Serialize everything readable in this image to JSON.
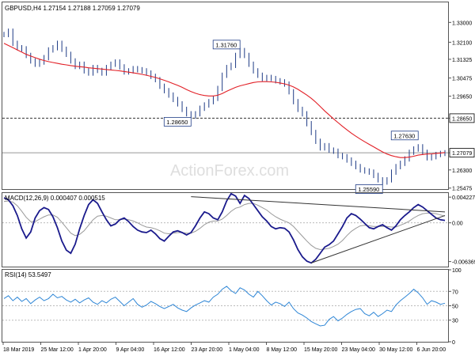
{
  "chart_data": [
    {
      "type": "line",
      "panel": "price",
      "title": "GBPUSD,H4  1.27154 1.27188 1.27059 1.27079",
      "watermark": "ActionForex.com",
      "ylim": [
        1.2543,
        1.3391
      ],
      "yticks": [
        "1.33000",
        "1.32100",
        "1.31325",
        "1.30475",
        "1.29650",
        "1.28650",
        "1.27079",
        "1.26300",
        "1.25475"
      ],
      "current_price": 1.27079,
      "current_price_label": "1.27079",
      "xticks": [
        "18 Mar 2019",
        "25 Mar 12:00",
        "1 Apr 20:00",
        "9 Apr 04:00",
        "16 Apr 12:00",
        "23 Apr 20:00",
        "1 May 04:00",
        "8 May 12:00",
        "15 May 20:00",
        "23 May 04:00",
        "30 May 12:00",
        "6 Jun 20:00"
      ],
      "series": [
        {
          "values": [
            1.3245,
            1.326,
            1.3205,
            1.3185,
            1.318,
            1.315,
            1.3125,
            1.311,
            1.312,
            1.314,
            1.3175,
            1.3185,
            1.3205,
            1.3178,
            1.3155,
            1.3125,
            1.31,
            1.311,
            1.308,
            1.307,
            1.3095,
            1.3082,
            1.307,
            1.3095,
            1.311,
            1.312,
            1.3098,
            1.3075,
            1.308,
            1.309,
            1.3085,
            1.308,
            1.307,
            1.3055,
            1.304,
            1.301,
            1.299,
            1.297,
            1.295,
            1.293,
            1.2905,
            1.2885,
            1.2875,
            1.2885,
            1.291,
            1.2925,
            1.294,
            1.2955,
            1.3,
            1.306,
            1.3095,
            1.3105,
            1.315,
            1.3172,
            1.315,
            1.311,
            1.308,
            1.306,
            1.3045,
            1.305,
            1.3045,
            1.3035,
            1.303,
            1.302,
            1.2985,
            1.294,
            1.2905,
            1.2885,
            1.284,
            1.28,
            1.276,
            1.273,
            1.274,
            1.272,
            1.2715,
            1.2695,
            1.269,
            1.2675,
            1.266,
            1.2645,
            1.263,
            1.2625,
            1.262,
            1.2605,
            1.2585,
            1.2575,
            1.2585,
            1.262,
            1.2645,
            1.266,
            1.268,
            1.271,
            1.2725,
            1.2735,
            1.271,
            1.2685,
            1.269,
            1.27,
            1.2705,
            1.2708
          ]
        },
        {
          "values": [
            1.3205,
            1.3195,
            1.3185,
            1.3175,
            1.3165,
            1.3155,
            1.3147,
            1.314,
            1.3133,
            1.3127,
            1.3122,
            1.3118,
            1.3114,
            1.311,
            1.3107,
            1.3104,
            1.3101,
            1.3099,
            1.3097,
            1.3094,
            1.3092,
            1.309,
            1.3088,
            1.3086,
            1.3084,
            1.3082,
            1.308,
            1.3077,
            1.3074,
            1.3071,
            1.3068,
            1.3064,
            1.306,
            1.3055,
            1.305,
            1.3044,
            1.3037,
            1.303,
            1.3022,
            1.3014,
            1.3005,
            1.2995,
            1.2986,
            1.2978,
            1.2972,
            1.2968,
            1.2966,
            1.2966,
            1.2969,
            1.2977,
            1.2987,
            1.2996,
            1.3005,
            1.3012,
            1.3017,
            1.3022,
            1.3027,
            1.303,
            1.3031,
            1.3031,
            1.303,
            1.3028,
            1.3025,
            1.3021,
            1.3015,
            1.3007,
            1.2996,
            1.2983,
            1.297,
            1.2955,
            1.2938,
            1.2918,
            1.2898,
            1.288,
            1.2862,
            1.2845,
            1.2828,
            1.2812,
            1.2797,
            1.2783,
            1.277,
            1.2758,
            1.2746,
            1.2735,
            1.2723,
            1.2712,
            1.2702,
            1.2695,
            1.269,
            1.2686,
            1.2686,
            1.2688,
            1.2692,
            1.2697,
            1.27,
            1.2702,
            1.2703,
            1.2705,
            1.2707,
            1.2709
          ]
        }
      ],
      "annotations": [
        {
          "label": "1.31760",
          "index": 53,
          "value": 1.3176,
          "kind": "high"
        },
        {
          "label": "1.28650",
          "index": 42,
          "value": 1.2865,
          "kind": "low"
        },
        {
          "label": "1.27630",
          "index": 93,
          "value": 1.2763,
          "kind": "high"
        },
        {
          "label": "1.25590",
          "index": 85,
          "value": 1.2559,
          "kind": "low"
        }
      ],
      "support_level": {
        "value": 1.2865,
        "label": "1.28650"
      }
    },
    {
      "type": "line",
      "panel": "macd",
      "title": "MACD(12,26,9) 0.000407 0.000515",
      "ylim": [
        -0.0072,
        0.0049
      ],
      "yticks": [
        "0.004227",
        "0.00",
        "-0.006369"
      ],
      "series": [
        {
          "values": [
            0.0041,
            0.0038,
            0.0028,
            0.0012,
            -0.001,
            -0.0025,
            -0.0015,
            0.0008,
            0.002,
            0.0025,
            0.0022,
            0.001,
            -0.0008,
            -0.003,
            -0.0045,
            -0.005,
            -0.0035,
            -0.001,
            0.0012,
            0.003,
            0.0038,
            0.0032,
            0.0018,
            0.0005,
            -0.0005,
            -0.0002,
            0.0005,
            0.0008,
            0.0002,
            -0.0006,
            -0.0012,
            -0.0015,
            -0.0016,
            -0.0012,
            -0.0018,
            -0.0026,
            -0.003,
            -0.0022,
            -0.0015,
            -0.0013,
            -0.0016,
            -0.002,
            -0.0016,
            -0.0005,
            0.0008,
            0.0018,
            0.0015,
            0.0008,
            0.0005,
            0.0018,
            0.0036,
            0.0048,
            0.0044,
            0.0032,
            0.0045,
            0.004,
            0.003,
            0.002,
            0.001,
            0.0003,
            -0.0006,
            -0.001,
            -0.0008,
            -0.0009,
            -0.0015,
            -0.0028,
            -0.0044,
            -0.0056,
            -0.0063,
            -0.0066,
            -0.006,
            -0.005,
            -0.004,
            -0.0036,
            -0.003,
            -0.0018,
            -0.0006,
            0.0008,
            0.0015,
            0.0012,
            0.0006,
            -0.0001,
            -0.0008,
            -0.001,
            -0.0006,
            -0.0003,
            -0.0008,
            -0.0012,
            -0.0005,
            0.0005,
            0.0012,
            0.0018,
            0.0025,
            0.003,
            0.0026,
            0.002,
            0.0014,
            0.0008,
            0.0005,
            0.0004
          ]
        },
        {
          "values": [
            0.0035,
            0.0036,
            0.0034,
            0.0028,
            0.0019,
            0.0009,
            0.0002,
            0.0002,
            0.0006,
            0.001,
            0.0013,
            0.0013,
            0.0009,
            0.0001,
            -0.0008,
            -0.0017,
            -0.0021,
            -0.0019,
            -0.0013,
            -0.0004,
            0.0005,
            0.0011,
            0.0012,
            0.0011,
            0.0008,
            0.0005,
            0.0005,
            0.0006,
            0.0005,
            0.0003,
            0.0,
            -0.0004,
            -0.0007,
            -0.0008,
            -0.001,
            -0.0013,
            -0.0017,
            -0.0018,
            -0.0017,
            -0.0016,
            -0.0016,
            -0.0017,
            -0.0017,
            -0.0014,
            -0.0009,
            -0.0003,
            0.0001,
            0.0003,
            0.0003,
            0.0006,
            0.0012,
            0.0019,
            0.0024,
            0.0026,
            0.003,
            0.0032,
            0.0032,
            0.0029,
            0.0025,
            0.0021,
            0.0015,
            0.001,
            0.0006,
            0.0003,
            0.0,
            -0.0006,
            -0.0014,
            -0.0022,
            -0.003,
            -0.0037,
            -0.0042,
            -0.0044,
            -0.0043,
            -0.0042,
            -0.0039,
            -0.0035,
            -0.0029,
            -0.0021,
            -0.0014,
            -0.0009,
            -0.0005,
            -0.0004,
            -0.0005,
            -0.0006,
            -0.0006,
            -0.0006,
            -0.0006,
            -0.0007,
            -0.0007,
            -0.0004,
            -0.0001,
            0.0003,
            0.0008,
            0.0012,
            0.0015,
            0.0016,
            0.0016,
            0.0015,
            0.0013,
            0.0011
          ]
        }
      ],
      "trendlines": [
        {
          "from": {
            "index": 42,
            "value": 0.0043
          },
          "to": {
            "index": 99,
            "value": 0.0018
          }
        },
        {
          "from": {
            "index": 69,
            "value": -0.0066
          },
          "to": {
            "index": 99,
            "value": 0.0012
          }
        }
      ]
    },
    {
      "type": "line",
      "panel": "rsi",
      "title": "RSI(14) 53.5497",
      "ylim": [
        0,
        100
      ],
      "yticks": [
        "100",
        "70",
        "50",
        "30",
        "0"
      ],
      "levels": [
        70,
        50,
        30
      ],
      "series": [
        {
          "values": [
            60,
            64,
            57,
            62,
            56,
            60,
            53,
            58,
            62,
            57,
            60,
            66,
            61,
            63,
            58,
            55,
            59,
            54,
            58,
            61,
            55,
            52,
            57,
            54,
            59,
            62,
            56,
            50,
            55,
            60,
            52,
            48,
            51,
            56,
            53,
            49,
            46,
            49,
            52,
            47,
            44,
            42,
            47,
            51,
            54,
            57,
            55,
            62,
            66,
            73,
            77,
            71,
            67,
            75,
            72,
            66,
            62,
            70,
            64,
            57,
            51,
            55,
            53,
            49,
            55,
            46,
            40,
            37,
            33,
            28,
            25,
            22,
            23,
            31,
            35,
            29,
            33,
            38,
            42,
            45,
            46,
            39,
            36,
            41,
            35,
            39,
            44,
            42,
            51,
            57,
            62,
            67,
            73,
            68,
            61,
            52,
            57,
            55,
            52,
            53.5
          ]
        }
      ]
    }
  ]
}
